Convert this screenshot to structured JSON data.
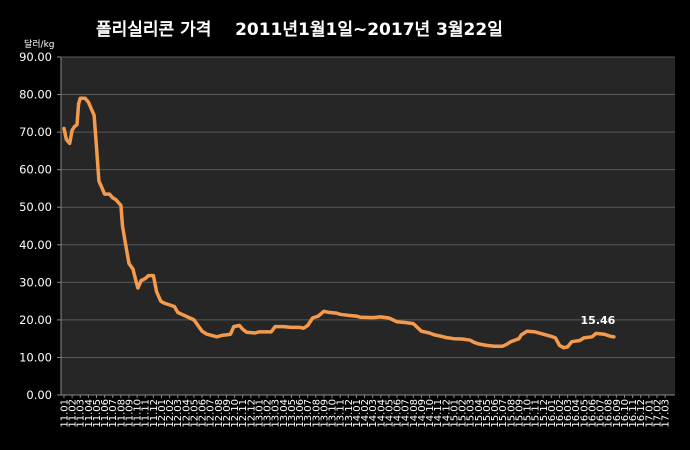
{
  "chart_data": {
    "type": "line",
    "title": "폴리실리콘 가격    2011년1월1일~2017년 3월22일",
    "ylabel": "달러/kg",
    "xlabel": "",
    "ylim": [
      0,
      90
    ],
    "yticks": [
      "0.00",
      "10.00",
      "20.00",
      "30.00",
      "40.00",
      "50.00",
      "60.00",
      "70.00",
      "80.00",
      "90.00"
    ],
    "grid": true,
    "legend": "none",
    "x_categories": [
      "11.01",
      "11.02",
      "11.03",
      "11.04",
      "11.05",
      "11.06",
      "11.07",
      "11.08",
      "11.09",
      "11.10",
      "11.11",
      "11.12",
      "12.01",
      "12.02",
      "12.03",
      "12.04",
      "12.05",
      "12.06",
      "12.07",
      "12.08",
      "12.09",
      "12.10",
      "12.11",
      "12.12",
      "13.01",
      "13.02",
      "13.03",
      "13.04",
      "13.05",
      "13.06",
      "13.07",
      "13.08",
      "13.09",
      "13.10",
      "13.11",
      "13.12",
      "14.01",
      "14.02",
      "14.03",
      "14.04",
      "14.05",
      "14.06",
      "14.07",
      "14.08",
      "14.09",
      "14.10",
      "14.11",
      "14.12",
      "15.01",
      "15.02",
      "15.03",
      "15.04",
      "15.05",
      "15.06",
      "15.07",
      "15.08",
      "15.09",
      "15.10",
      "15.11",
      "15.12",
      "16.01",
      "16.02",
      "16.03",
      "16.04",
      "16.05",
      "16.06",
      "16.07",
      "16.08",
      "16.09",
      "16.10",
      "16.11",
      "16.12",
      "17.01",
      "17.02",
      "17.03"
    ],
    "series": [
      {
        "name": "",
        "color": "#f39a4c",
        "points": [
          [
            0,
            71.0
          ],
          [
            0.3,
            68.0
          ],
          [
            0.7,
            67.0
          ],
          [
            1.0,
            70.5
          ],
          [
            1.3,
            71.5
          ],
          [
            1.6,
            72.0
          ],
          [
            1.8,
            77.5
          ],
          [
            2.0,
            79.0
          ],
          [
            2.6,
            79.0
          ],
          [
            3.0,
            78.0
          ],
          [
            3.4,
            76.0
          ],
          [
            3.7,
            74.5
          ],
          [
            4.0,
            66.0
          ],
          [
            4.3,
            57.0
          ],
          [
            4.7,
            55.0
          ],
          [
            5.0,
            53.5
          ],
          [
            5.6,
            53.5
          ],
          [
            6.0,
            52.5
          ],
          [
            6.4,
            52.0
          ],
          [
            6.8,
            51.0
          ],
          [
            7.0,
            50.5
          ],
          [
            7.2,
            45.0
          ],
          [
            7.6,
            40.0
          ],
          [
            8.0,
            35.0
          ],
          [
            8.5,
            33.5
          ],
          [
            8.9,
            30.0
          ],
          [
            9.1,
            28.5
          ],
          [
            9.5,
            30.5
          ],
          [
            10.0,
            31.0
          ],
          [
            10.4,
            31.8
          ],
          [
            11.0,
            31.8
          ],
          [
            11.4,
            27.5
          ],
          [
            11.9,
            25.0
          ],
          [
            12.3,
            24.5
          ],
          [
            13.0,
            24.0
          ],
          [
            13.6,
            23.5
          ],
          [
            14.0,
            22.0
          ],
          [
            14.5,
            21.5
          ],
          [
            15.0,
            21.0
          ],
          [
            15.5,
            20.5
          ],
          [
            16.0,
            20.0
          ],
          [
            16.5,
            18.5
          ],
          [
            17.0,
            17.0
          ],
          [
            17.6,
            16.2
          ],
          [
            18.3,
            15.8
          ],
          [
            18.8,
            15.5
          ],
          [
            19.5,
            15.9
          ],
          [
            20.0,
            16.0
          ],
          [
            20.5,
            16.2
          ],
          [
            20.9,
            18.2
          ],
          [
            21.6,
            18.5
          ],
          [
            22.0,
            17.5
          ],
          [
            22.5,
            16.7
          ],
          [
            23.5,
            16.5
          ],
          [
            24.0,
            16.8
          ],
          [
            25.5,
            16.8
          ],
          [
            26.0,
            18.2
          ],
          [
            27.0,
            18.2
          ],
          [
            28.0,
            18.0
          ],
          [
            29.0,
            18.0
          ],
          [
            29.5,
            17.8
          ],
          [
            30.0,
            18.5
          ],
          [
            30.6,
            20.5
          ],
          [
            31.3,
            21.0
          ],
          [
            32.0,
            22.3
          ],
          [
            32.6,
            22.0
          ],
          [
            33.5,
            21.8
          ],
          [
            34.0,
            21.5
          ],
          [
            35.0,
            21.2
          ],
          [
            36.0,
            21.0
          ],
          [
            36.5,
            20.7
          ],
          [
            38.0,
            20.6
          ],
          [
            39.0,
            20.8
          ],
          [
            40.0,
            20.5
          ],
          [
            40.5,
            20.0
          ],
          [
            41.0,
            19.5
          ],
          [
            42.0,
            19.3
          ],
          [
            43.0,
            19.0
          ],
          [
            43.5,
            18.0
          ],
          [
            44.0,
            17.0
          ],
          [
            45.0,
            16.5
          ],
          [
            45.6,
            16.0
          ],
          [
            46.5,
            15.6
          ],
          [
            47.0,
            15.3
          ],
          [
            48.0,
            15.0
          ],
          [
            49.0,
            14.9
          ],
          [
            50.0,
            14.6
          ],
          [
            50.5,
            14.0
          ],
          [
            51.0,
            13.6
          ],
          [
            52.0,
            13.2
          ],
          [
            53.0,
            13.0
          ],
          [
            54.0,
            13.0
          ],
          [
            54.5,
            13.5
          ],
          [
            55.0,
            14.2
          ],
          [
            56.0,
            15.0
          ],
          [
            56.3,
            16.0
          ],
          [
            57.0,
            17.0
          ],
          [
            58.0,
            16.8
          ],
          [
            59.0,
            16.2
          ],
          [
            60.0,
            15.6
          ],
          [
            60.5,
            15.2
          ],
          [
            61.0,
            13.2
          ],
          [
            61.5,
            12.6
          ],
          [
            62.0,
            12.8
          ],
          [
            62.5,
            14.2
          ],
          [
            63.5,
            14.5
          ],
          [
            64.0,
            15.2
          ],
          [
            65.0,
            15.5
          ],
          [
            65.5,
            16.4
          ],
          [
            66.5,
            16.2
          ],
          [
            67.3,
            15.6
          ],
          [
            67.7,
            15.46
          ]
        ],
        "last_value_label": "15.46"
      }
    ]
  }
}
